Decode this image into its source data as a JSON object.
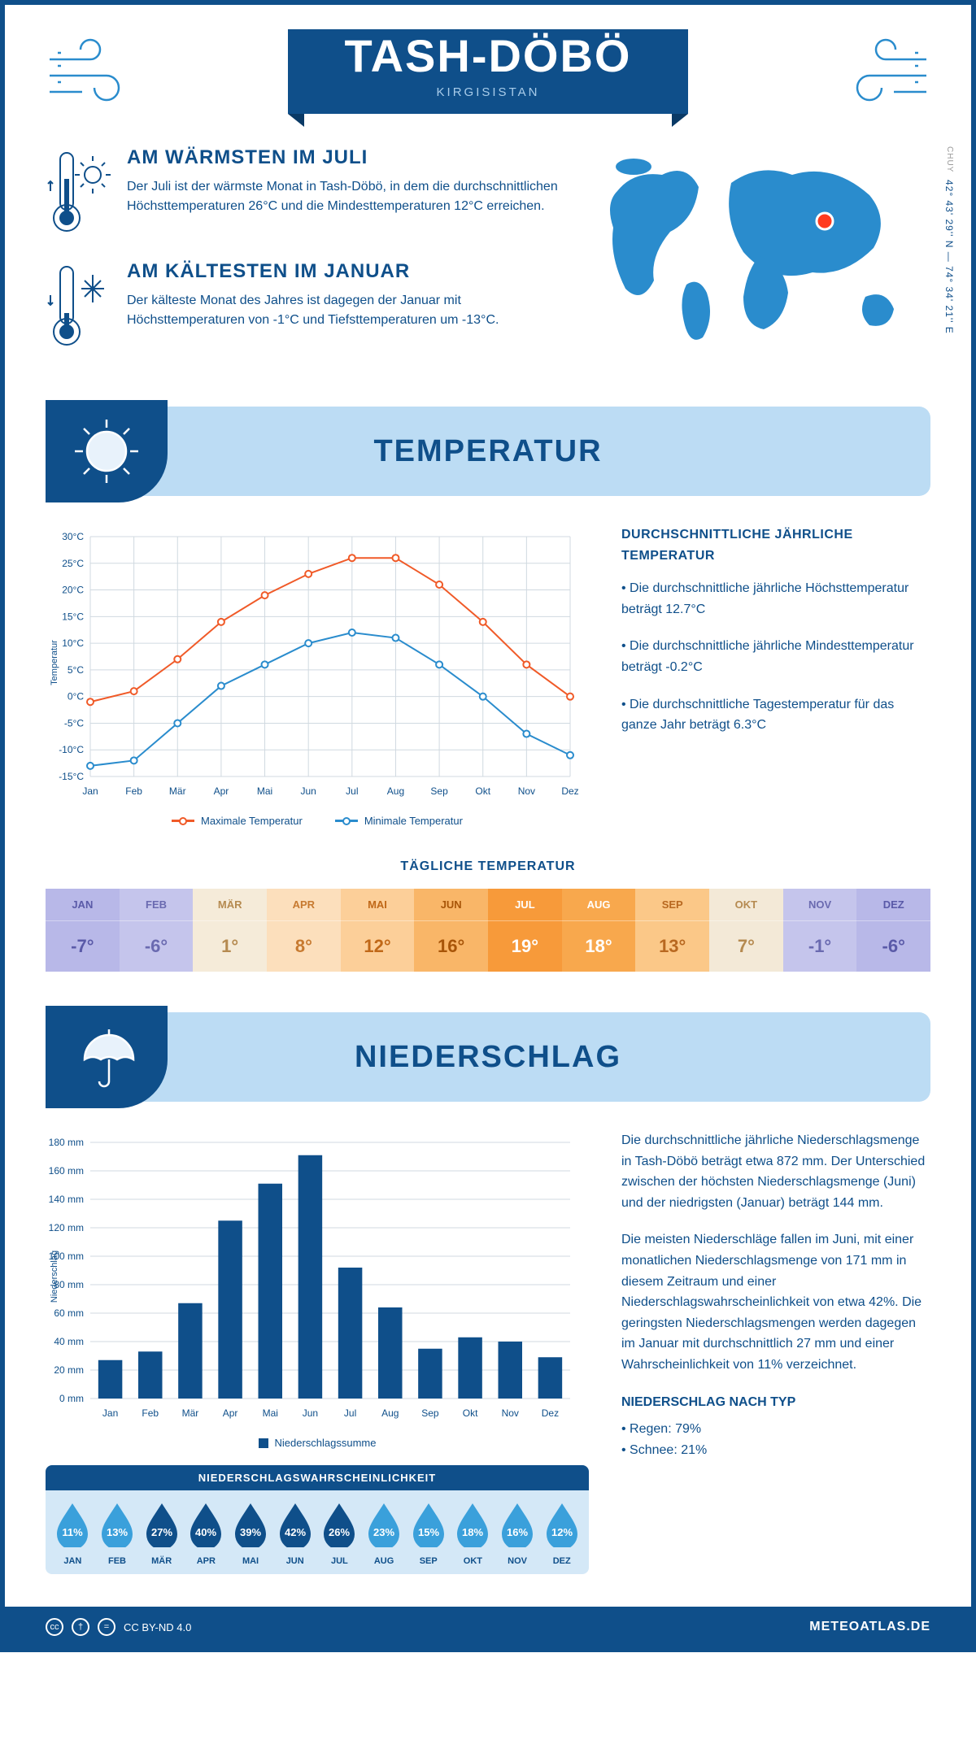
{
  "header": {
    "title": "TASH-DÖBÖ",
    "subtitle": "KIRGISISTAN"
  },
  "coords": {
    "lat": "42° 43' 29'' N — 74° 34' 21'' E",
    "region": "CHUY"
  },
  "warmest": {
    "heading": "AM WÄRMSTEN IM JULI",
    "text": "Der Juli ist der wärmste Monat in Tash-Döbö, in dem die durchschnittlichen Höchsttemperaturen 26°C und die Mindesttemperaturen 12°C erreichen."
  },
  "coldest": {
    "heading": "AM KÄLTESTEN IM JANUAR",
    "text": "Der kälteste Monat des Jahres ist dagegen der Januar mit Höchsttemperaturen von -1°C und Tiefsttemperaturen um -13°C."
  },
  "section_temp": "TEMPERATUR",
  "section_precip": "NIEDERSCHLAG",
  "months_short": [
    "Jan",
    "Feb",
    "Mär",
    "Apr",
    "Mai",
    "Jun",
    "Jul",
    "Aug",
    "Sep",
    "Okt",
    "Nov",
    "Dez"
  ],
  "months_upper": [
    "JAN",
    "FEB",
    "MÄR",
    "APR",
    "MAI",
    "JUN",
    "JUL",
    "AUG",
    "SEP",
    "OKT",
    "NOV",
    "DEZ"
  ],
  "temp_chart": {
    "type": "line",
    "ylabel": "Temperatur",
    "ylim": [
      -15,
      30
    ],
    "ytick_step": 5,
    "y_suffix": "°C",
    "grid_color": "#d0d9e0",
    "background": "#ffffff",
    "axis_fontsize": 12,
    "label_fontsize": 11,
    "series": [
      {
        "name": "Maximale Temperatur",
        "color": "#f05a28",
        "marker": "circle",
        "line_width": 2,
        "values": [
          -1,
          1,
          7,
          14,
          19,
          23,
          26,
          26,
          21,
          14,
          6,
          0
        ]
      },
      {
        "name": "Minimale Temperatur",
        "color": "#2a8ccd",
        "marker": "circle",
        "line_width": 2,
        "values": [
          -13,
          -12,
          -5,
          2,
          6,
          10,
          12,
          11,
          6,
          0,
          -7,
          -11
        ]
      }
    ]
  },
  "temp_side": {
    "heading": "DURCHSCHNITTLICHE JÄHRLICHE TEMPERATUR",
    "bullets": [
      "• Die durchschnittliche jährliche Höchsttemperatur beträgt 12.7°C",
      "• Die durchschnittliche jährliche Mindesttemperatur beträgt -0.2°C",
      "• Die durchschnittliche Tagestemperatur für das ganze Jahr beträgt 6.3°C"
    ]
  },
  "daily_temp": {
    "title": "TÄGLICHE TEMPERATUR",
    "values": [
      "-7°",
      "-6°",
      "1°",
      "8°",
      "12°",
      "16°",
      "19°",
      "18°",
      "13°",
      "7°",
      "-1°",
      "-6°"
    ],
    "bg_colors": [
      "#b8b8e8",
      "#c5c5ec",
      "#f5ebd9",
      "#fcdfbc",
      "#fccf99",
      "#f9b668",
      "#f79a3a",
      "#f8a84d",
      "#fbc888",
      "#f3e9d7",
      "#c5c5ec",
      "#b8b8e8"
    ],
    "text_colors": [
      "#5a5aa8",
      "#6a6ab0",
      "#b58a50",
      "#c77a30",
      "#c06818",
      "#a85508",
      "#fff",
      "#fff",
      "#b86820",
      "#b58a50",
      "#6a6ab0",
      "#5a5aa8"
    ]
  },
  "precip_chart": {
    "type": "bar",
    "ylabel": "Niederschlag",
    "ylim": [
      0,
      180
    ],
    "ytick_step": 20,
    "y_suffix": " mm",
    "grid_color": "#d0d9e0",
    "bar_color": "#0f4f8a",
    "bar_width": 0.6,
    "legend": "Niederschlagssumme",
    "values": [
      27,
      33,
      67,
      125,
      151,
      171,
      92,
      64,
      35,
      43,
      40,
      29
    ]
  },
  "precip_side": {
    "p1": "Die durchschnittliche jährliche Niederschlagsmenge in Tash-Döbö beträgt etwa 872 mm. Der Unterschied zwischen der höchsten Niederschlagsmenge (Juni) und der niedrigsten (Januar) beträgt 144 mm.",
    "p2": "Die meisten Niederschläge fallen im Juni, mit einer monatlichen Niederschlagsmenge von 171 mm in diesem Zeitraum und einer Niederschlagswahrscheinlichkeit von etwa 42%. Die geringsten Niederschlagsmengen werden dagegen im Januar mit durchschnittlich 27 mm und einer Wahrscheinlichkeit von 11% verzeichnet.",
    "type_heading": "NIEDERSCHLAG NACH TYP",
    "type_bullets": [
      "• Regen: 79%",
      "• Schnee: 21%"
    ]
  },
  "precip_prob": {
    "title": "NIEDERSCHLAGSWAHRSCHEINLICHKEIT",
    "values": [
      11,
      13,
      27,
      40,
      39,
      42,
      26,
      23,
      15,
      18,
      16,
      12
    ],
    "color_light": "#3aa0db",
    "color_dark": "#0f4f8a",
    "dark_threshold": 25
  },
  "footer": {
    "license": "CC BY-ND 4.0",
    "brand": "METEOATLAS.DE"
  }
}
